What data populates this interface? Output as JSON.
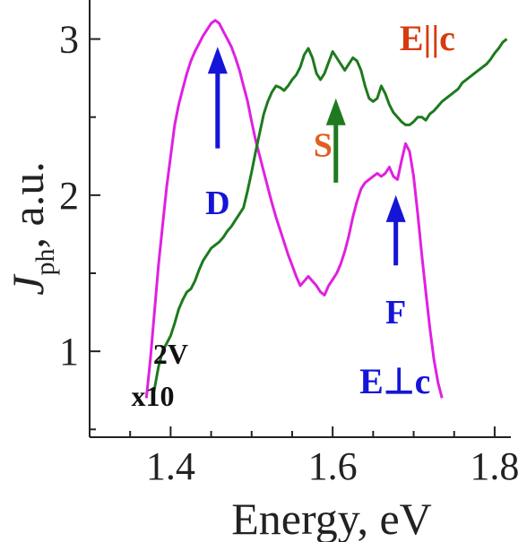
{
  "chart_data": {
    "type": "line",
    "xlabel": "Energy, eV",
    "ylabel_main": "J",
    "ylabel_sub": "ph",
    "ylabel_rest": ", a.u.",
    "xlim": [
      1.3,
      1.82
    ],
    "ylim": [
      0.45,
      3.25
    ],
    "x_ticks": [
      1.4,
      1.6,
      1.8
    ],
    "y_ticks": [
      1,
      2,
      3
    ],
    "grid": false,
    "series": [
      {
        "name": "E⊥c",
        "color": "#e020e0",
        "points": [
          [
            1.37,
            0.7
          ],
          [
            1.375,
            0.95
          ],
          [
            1.38,
            1.25
          ],
          [
            1.385,
            1.55
          ],
          [
            1.39,
            1.8
          ],
          [
            1.395,
            2.05
          ],
          [
            1.4,
            2.25
          ],
          [
            1.405,
            2.45
          ],
          [
            1.41,
            2.58
          ],
          [
            1.415,
            2.68
          ],
          [
            1.42,
            2.78
          ],
          [
            1.425,
            2.86
          ],
          [
            1.43,
            2.92
          ],
          [
            1.435,
            2.97
          ],
          [
            1.44,
            3.02
          ],
          [
            1.445,
            3.06
          ],
          [
            1.45,
            3.1
          ],
          [
            1.455,
            3.12
          ],
          [
            1.46,
            3.1
          ],
          [
            1.465,
            3.05
          ],
          [
            1.47,
            3.0
          ],
          [
            1.475,
            2.95
          ],
          [
            1.48,
            2.88
          ],
          [
            1.485,
            2.8
          ],
          [
            1.49,
            2.7
          ],
          [
            1.495,
            2.6
          ],
          [
            1.5,
            2.47
          ],
          [
            1.505,
            2.35
          ],
          [
            1.51,
            2.25
          ],
          [
            1.515,
            2.15
          ],
          [
            1.52,
            2.05
          ],
          [
            1.525,
            1.95
          ],
          [
            1.53,
            1.86
          ],
          [
            1.535,
            1.78
          ],
          [
            1.54,
            1.7
          ],
          [
            1.545,
            1.62
          ],
          [
            1.55,
            1.55
          ],
          [
            1.555,
            1.48
          ],
          [
            1.56,
            1.42
          ],
          [
            1.565,
            1.45
          ],
          [
            1.57,
            1.48
          ],
          [
            1.575,
            1.45
          ],
          [
            1.58,
            1.42
          ],
          [
            1.585,
            1.38
          ],
          [
            1.59,
            1.36
          ],
          [
            1.595,
            1.42
          ],
          [
            1.6,
            1.46
          ],
          [
            1.605,
            1.5
          ],
          [
            1.61,
            1.56
          ],
          [
            1.615,
            1.64
          ],
          [
            1.62,
            1.74
          ],
          [
            1.625,
            1.86
          ],
          [
            1.63,
            1.96
          ],
          [
            1.635,
            2.04
          ],
          [
            1.64,
            2.08
          ],
          [
            1.645,
            2.1
          ],
          [
            1.65,
            2.12
          ],
          [
            1.655,
            2.14
          ],
          [
            1.66,
            2.12
          ],
          [
            1.665,
            2.14
          ],
          [
            1.67,
            2.18
          ],
          [
            1.675,
            2.12
          ],
          [
            1.68,
            2.1
          ],
          [
            1.685,
            2.22
          ],
          [
            1.69,
            2.33
          ],
          [
            1.695,
            2.28
          ],
          [
            1.7,
            2.12
          ],
          [
            1.705,
            1.88
          ],
          [
            1.71,
            1.62
          ],
          [
            1.715,
            1.38
          ],
          [
            1.72,
            1.15
          ],
          [
            1.725,
            0.95
          ],
          [
            1.73,
            0.8
          ],
          [
            1.735,
            0.7
          ]
        ]
      },
      {
        "name": "E||c",
        "color": "#1e7a1e",
        "points": [
          [
            1.378,
            0.7
          ],
          [
            1.385,
            0.9
          ],
          [
            1.39,
            1.0
          ],
          [
            1.395,
            1.05
          ],
          [
            1.4,
            1.1
          ],
          [
            1.405,
            1.18
          ],
          [
            1.41,
            1.27
          ],
          [
            1.415,
            1.33
          ],
          [
            1.42,
            1.38
          ],
          [
            1.425,
            1.4
          ],
          [
            1.43,
            1.45
          ],
          [
            1.435,
            1.52
          ],
          [
            1.44,
            1.58
          ],
          [
            1.445,
            1.62
          ],
          [
            1.45,
            1.66
          ],
          [
            1.455,
            1.68
          ],
          [
            1.46,
            1.7
          ],
          [
            1.465,
            1.73
          ],
          [
            1.47,
            1.77
          ],
          [
            1.475,
            1.8
          ],
          [
            1.48,
            1.84
          ],
          [
            1.485,
            1.88
          ],
          [
            1.49,
            1.92
          ],
          [
            1.495,
            2.03
          ],
          [
            1.5,
            2.15
          ],
          [
            1.505,
            2.28
          ],
          [
            1.51,
            2.4
          ],
          [
            1.515,
            2.52
          ],
          [
            1.52,
            2.6
          ],
          [
            1.525,
            2.66
          ],
          [
            1.53,
            2.7
          ],
          [
            1.535,
            2.69
          ],
          [
            1.54,
            2.67
          ],
          [
            1.545,
            2.7
          ],
          [
            1.55,
            2.74
          ],
          [
            1.555,
            2.77
          ],
          [
            1.56,
            2.82
          ],
          [
            1.565,
            2.9
          ],
          [
            1.57,
            2.94
          ],
          [
            1.575,
            2.88
          ],
          [
            1.58,
            2.78
          ],
          [
            1.585,
            2.74
          ],
          [
            1.59,
            2.78
          ],
          [
            1.595,
            2.85
          ],
          [
            1.6,
            2.92
          ],
          [
            1.605,
            2.88
          ],
          [
            1.61,
            2.84
          ],
          [
            1.615,
            2.8
          ],
          [
            1.62,
            2.84
          ],
          [
            1.625,
            2.88
          ],
          [
            1.63,
            2.86
          ],
          [
            1.635,
            2.8
          ],
          [
            1.64,
            2.7
          ],
          [
            1.645,
            2.62
          ],
          [
            1.65,
            2.6
          ],
          [
            1.655,
            2.62
          ],
          [
            1.66,
            2.7
          ],
          [
            1.665,
            2.65
          ],
          [
            1.67,
            2.58
          ],
          [
            1.675,
            2.53
          ],
          [
            1.68,
            2.5
          ],
          [
            1.685,
            2.47
          ],
          [
            1.69,
            2.45
          ],
          [
            1.695,
            2.45
          ],
          [
            1.7,
            2.47
          ],
          [
            1.705,
            2.5
          ],
          [
            1.71,
            2.5
          ],
          [
            1.715,
            2.48
          ],
          [
            1.72,
            2.52
          ],
          [
            1.725,
            2.54
          ],
          [
            1.73,
            2.57
          ],
          [
            1.735,
            2.6
          ],
          [
            1.74,
            2.62
          ],
          [
            1.745,
            2.64
          ],
          [
            1.75,
            2.66
          ],
          [
            1.755,
            2.68
          ],
          [
            1.76,
            2.72
          ],
          [
            1.765,
            2.74
          ],
          [
            1.77,
            2.76
          ],
          [
            1.775,
            2.78
          ],
          [
            1.78,
            2.8
          ],
          [
            1.785,
            2.82
          ],
          [
            1.79,
            2.84
          ],
          [
            1.795,
            2.87
          ],
          [
            1.8,
            2.91
          ],
          [
            1.805,
            2.94
          ],
          [
            1.81,
            2.98
          ],
          [
            1.815,
            3.0
          ]
        ]
      }
    ],
    "annotations": [
      {
        "id": "D",
        "text": "D",
        "color": "#1515d8",
        "x": 1.458,
        "y": 1.88,
        "arrow_color": "#1515d8",
        "arrow_from": [
          1.458,
          2.3
        ],
        "arrow_to": [
          1.458,
          2.95
        ]
      },
      {
        "id": "S",
        "text": "S",
        "color": "#e06020",
        "x": 1.588,
        "y": 2.25,
        "arrow_color": "#1e7a1e",
        "arrow_from": [
          1.604,
          2.08
        ],
        "arrow_to": [
          1.604,
          2.62
        ]
      },
      {
        "id": "F",
        "text": "F",
        "color": "#1515d8",
        "x": 1.678,
        "y": 1.18,
        "arrow_color": "#1515d8",
        "arrow_from": [
          1.678,
          1.55
        ],
        "arrow_to": [
          1.678,
          2.0
        ]
      },
      {
        "id": "Epar",
        "text": "E||c",
        "color": "#d83a10",
        "x": 1.717,
        "y": 2.93
      },
      {
        "id": "Eperp",
        "text": "E⊥c",
        "color": "#1515d8",
        "x": 1.677,
        "y": 0.73
      },
      {
        "id": "volt",
        "text": "2V",
        "color": "#111111",
        "x": 1.4,
        "y": 0.92
      },
      {
        "id": "mult",
        "text": "x10",
        "color": "#111111",
        "x": 1.378,
        "y": 0.65
      }
    ]
  }
}
